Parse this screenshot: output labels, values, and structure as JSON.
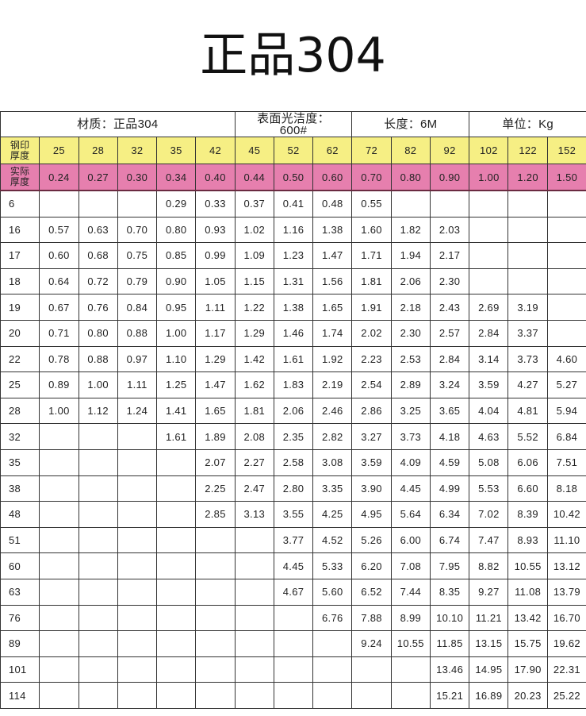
{
  "title": "正品304",
  "header_groups": [
    "材质：正品304",
    "表面光洁度：\n600#",
    "长度：6M",
    "单位：Kg"
  ],
  "colors": {
    "stamp_row": "#f6ef84",
    "actual_row": "#e67fae"
  },
  "stamp_label": "钢印\n厚度",
  "stamp_thickness": [
    "25",
    "28",
    "32",
    "35",
    "42",
    "45",
    "52",
    "62",
    "72",
    "82",
    "92",
    "102",
    "122",
    "152"
  ],
  "actual_label": "实际\n厚度",
  "actual_thickness": [
    "0.24",
    "0.27",
    "0.30",
    "0.34",
    "0.40",
    "0.44",
    "0.50",
    "0.60",
    "0.70",
    "0.80",
    "0.90",
    "1.00",
    "1.20",
    "1.50"
  ],
  "rows": [
    [
      "6",
      "",
      "",
      "",
      "0.29",
      "0.33",
      "0.37",
      "0.41",
      "0.48",
      "0.55",
      "",
      "",
      "",
      "",
      ""
    ],
    [
      "16",
      "0.57",
      "0.63",
      "0.70",
      "0.80",
      "0.93",
      "1.02",
      "1.16",
      "1.38",
      "1.60",
      "1.82",
      "2.03",
      "",
      "",
      ""
    ],
    [
      "17",
      "0.60",
      "0.68",
      "0.75",
      "0.85",
      "0.99",
      "1.09",
      "1.23",
      "1.47",
      "1.71",
      "1.94",
      "2.17",
      "",
      "",
      ""
    ],
    [
      "18",
      "0.64",
      "0.72",
      "0.79",
      "0.90",
      "1.05",
      "1.15",
      "1.31",
      "1.56",
      "1.81",
      "2.06",
      "2.30",
      "",
      "",
      ""
    ],
    [
      "19",
      "0.67",
      "0.76",
      "0.84",
      "0.95",
      "1.11",
      "1.22",
      "1.38",
      "1.65",
      "1.91",
      "2.18",
      "2.43",
      "2.69",
      "3.19",
      ""
    ],
    [
      "20",
      "0.71",
      "0.80",
      "0.88",
      "1.00",
      "1.17",
      "1.29",
      "1.46",
      "1.74",
      "2.02",
      "2.30",
      "2.57",
      "2.84",
      "3.37",
      ""
    ],
    [
      "22",
      "0.78",
      "0.88",
      "0.97",
      "1.10",
      "1.29",
      "1.42",
      "1.61",
      "1.92",
      "2.23",
      "2.53",
      "2.84",
      "3.14",
      "3.73",
      "4.60"
    ],
    [
      "25",
      "0.89",
      "1.00",
      "1.11",
      "1.25",
      "1.47",
      "1.62",
      "1.83",
      "2.19",
      "2.54",
      "2.89",
      "3.24",
      "3.59",
      "4.27",
      "5.27"
    ],
    [
      "28",
      "1.00",
      "1.12",
      "1.24",
      "1.41",
      "1.65",
      "1.81",
      "2.06",
      "2.46",
      "2.86",
      "3.25",
      "3.65",
      "4.04",
      "4.81",
      "5.94"
    ],
    [
      "32",
      "",
      "",
      "",
      "1.61",
      "1.89",
      "2.08",
      "2.35",
      "2.82",
      "3.27",
      "3.73",
      "4.18",
      "4.63",
      "5.52",
      "6.84"
    ],
    [
      "35",
      "",
      "",
      "",
      "",
      "2.07",
      "2.27",
      "2.58",
      "3.08",
      "3.59",
      "4.09",
      "4.59",
      "5.08",
      "6.06",
      "7.51"
    ],
    [
      "38",
      "",
      "",
      "",
      "",
      "2.25",
      "2.47",
      "2.80",
      "3.35",
      "3.90",
      "4.45",
      "4.99",
      "5.53",
      "6.60",
      "8.18"
    ],
    [
      "48",
      "",
      "",
      "",
      "",
      "2.85",
      "3.13",
      "3.55",
      "4.25",
      "4.95",
      "5.64",
      "6.34",
      "7.02",
      "8.39",
      "10.42"
    ],
    [
      "51",
      "",
      "",
      "",
      "",
      "",
      "",
      "3.77",
      "4.52",
      "5.26",
      "6.00",
      "6.74",
      "7.47",
      "8.93",
      "11.10"
    ],
    [
      "60",
      "",
      "",
      "",
      "",
      "",
      "",
      "4.45",
      "5.33",
      "6.20",
      "7.08",
      "7.95",
      "8.82",
      "10.55",
      "13.12"
    ],
    [
      "63",
      "",
      "",
      "",
      "",
      "",
      "",
      "4.67",
      "5.60",
      "6.52",
      "7.44",
      "8.35",
      "9.27",
      "11.08",
      "13.79"
    ],
    [
      "76",
      "",
      "",
      "",
      "",
      "",
      "",
      "",
      "6.76",
      "7.88",
      "8.99",
      "10.10",
      "11.21",
      "13.42",
      "16.70"
    ],
    [
      "89",
      "",
      "",
      "",
      "",
      "",
      "",
      "",
      "",
      "9.24",
      "10.55",
      "11.85",
      "13.15",
      "15.75",
      "19.62"
    ],
    [
      "101",
      "",
      "",
      "",
      "",
      "",
      "",
      "",
      "",
      "",
      "",
      "13.46",
      "14.95",
      "17.90",
      "22.31"
    ],
    [
      "114",
      "",
      "",
      "",
      "",
      "",
      "",
      "",
      "",
      "",
      "",
      "15.21",
      "16.89",
      "20.23",
      "25.22"
    ]
  ]
}
